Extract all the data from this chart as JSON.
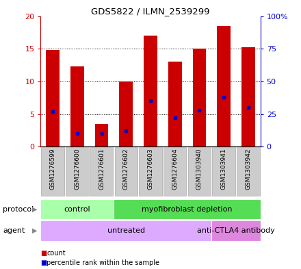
{
  "title": "GDS5822 / ILMN_2539299",
  "samples": [
    "GSM1276599",
    "GSM1276600",
    "GSM1276601",
    "GSM1276602",
    "GSM1276603",
    "GSM1276604",
    "GSM1303940",
    "GSM1303941",
    "GSM1303942"
  ],
  "counts": [
    14.8,
    12.3,
    3.5,
    10.0,
    17.0,
    13.0,
    15.0,
    18.5,
    15.2
  ],
  "percentiles": [
    27,
    10,
    10,
    12,
    35,
    22,
    28,
    38,
    30
  ],
  "bar_color": "#cc0000",
  "blue_color": "#0000cc",
  "ylim_left": [
    0,
    20
  ],
  "ylim_right": [
    0,
    100
  ],
  "yticks_left": [
    0,
    5,
    10,
    15,
    20
  ],
  "yticks_right": [
    0,
    25,
    50,
    75,
    100
  ],
  "ytick_labels_left": [
    "0",
    "5",
    "10",
    "15",
    "20"
  ],
  "ytick_labels_right": [
    "0",
    "25",
    "50",
    "75",
    "100%"
  ],
  "protocol_groups": [
    {
      "label": "control",
      "start": 0,
      "end": 3,
      "color": "#aaffaa"
    },
    {
      "label": "myofibroblast depletion",
      "start": 3,
      "end": 9,
      "color": "#55dd55"
    }
  ],
  "agent_groups": [
    {
      "label": "untreated",
      "start": 0,
      "end": 7,
      "color": "#ddaaff"
    },
    {
      "label": "anti-CTLA4 antibody",
      "start": 7,
      "end": 9,
      "color": "#dd88dd"
    }
  ],
  "protocol_label": "protocol",
  "agent_label": "agent",
  "legend_count": "count",
  "legend_percentile": "percentile rank within the sample",
  "bar_width": 0.55,
  "grid_color": "black",
  "grid_linewidth": 0.7,
  "sample_box_color": "#cccccc",
  "sample_box_edge": "#aaaaaa",
  "fig_bg": "#ffffff"
}
